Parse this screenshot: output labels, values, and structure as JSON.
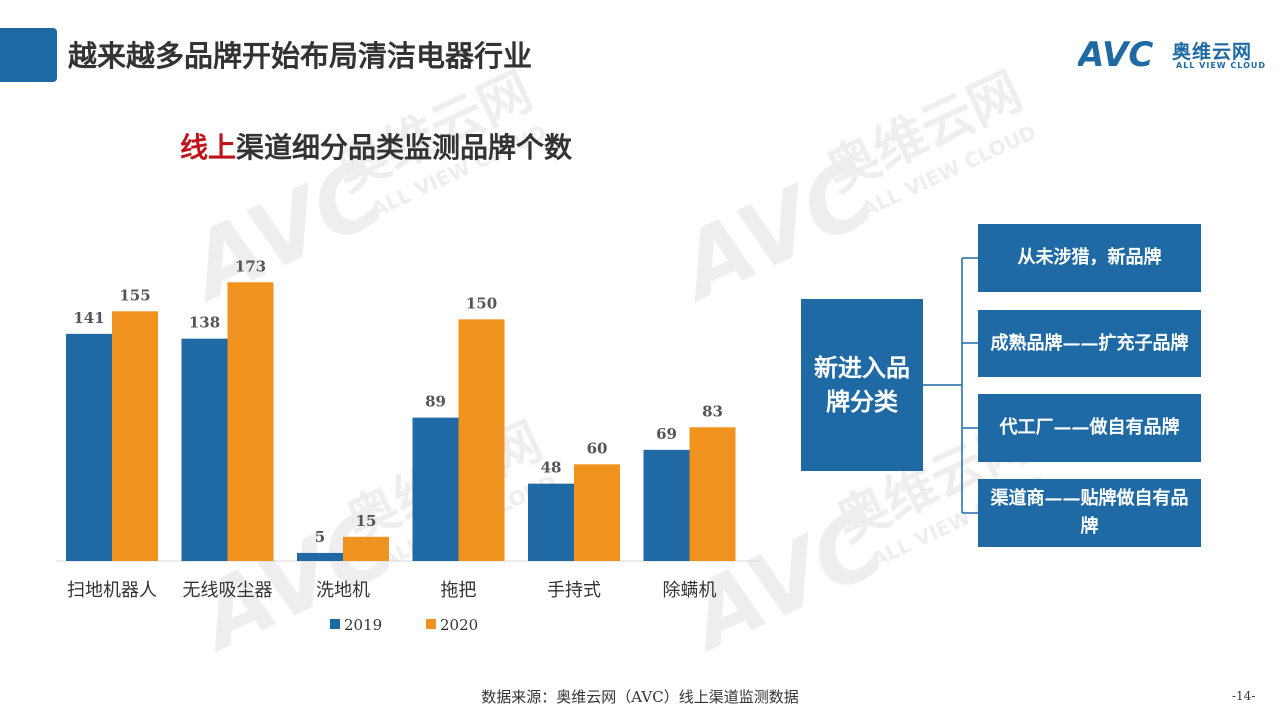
{
  "slide": {
    "title": "越来越多品牌开始布局清洁电器行业",
    "logo_mark": "AVC",
    "logo_cn": "奥维云网",
    "logo_en": "ALL VIEW CLOUD",
    "watermark_cn": "奥维云网",
    "watermark_en": "ALL VIEW CLOUD",
    "source": "数据来源：奥维云网（AVC）线上渠道监测数据",
    "page_number": "-14-"
  },
  "chart_title": {
    "highlight": "线上",
    "rest": "渠道细分品类监测品牌个数"
  },
  "chart_data": {
    "type": "bar",
    "title": "线上渠道细分品类监测品牌个数",
    "categories": [
      "扫地机器人",
      "无线吸尘器",
      "洗地机",
      "拖把",
      "手持式",
      "除螨机"
    ],
    "series": [
      {
        "name": "2019",
        "values": [
          141,
          138,
          5,
          89,
          48,
          69
        ],
        "color": "#1f6aa5"
      },
      {
        "name": "2020",
        "values": [
          155,
          173,
          15,
          150,
          60,
          83
        ],
        "color": "#f0921e"
      }
    ],
    "ylim": [
      0,
      180
    ],
    "grid": false,
    "legend": "bottom",
    "data_labels": true
  },
  "classification": {
    "main": "新进入品牌分类",
    "items": [
      "从未涉猎，新品牌",
      "成熟品牌——扩充子品牌",
      "代工厂——做自有品牌",
      "渠道商——贴牌做自有品牌"
    ]
  }
}
